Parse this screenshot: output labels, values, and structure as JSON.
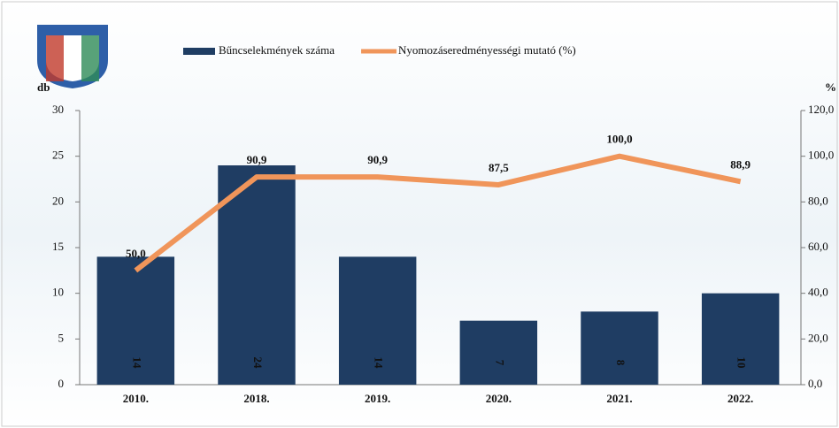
{
  "chart_data": {
    "type": "combo",
    "categories": [
      "2010.",
      "2018.",
      "2019.",
      "2020.",
      "2021.",
      "2022."
    ],
    "series": [
      {
        "name": "Bűncselekmények száma",
        "type": "bar",
        "color": "#1f3d63",
        "values": [
          14,
          24,
          14,
          7,
          8,
          10
        ]
      },
      {
        "name": "Nyomozáseredményességi mutató (%)",
        "type": "line",
        "axis": "y2",
        "color": "#f0955a",
        "values": [
          50.0,
          90.9,
          90.9,
          87.5,
          100.0,
          88.9
        ],
        "value_labels": [
          "50,0",
          "90,9",
          "90,9",
          "87,5",
          "100,0",
          "88,9"
        ]
      }
    ],
    "y_label": "db",
    "y2_label": "%",
    "ylim": [
      0,
      30
    ],
    "yticks": [
      0,
      5,
      10,
      15,
      20,
      25,
      30
    ],
    "y2lim": [
      0,
      120
    ],
    "y2ticks": [
      {
        "value": 0,
        "label": "0,0"
      },
      {
        "value": 20,
        "label": "20,0"
      },
      {
        "value": 40,
        "label": "40,0"
      },
      {
        "value": 60,
        "label": "60,0"
      },
      {
        "value": 80,
        "label": "80,0"
      },
      {
        "value": 100,
        "label": "100,0"
      },
      {
        "value": 120,
        "label": "120,0"
      }
    ],
    "legend": "top"
  }
}
